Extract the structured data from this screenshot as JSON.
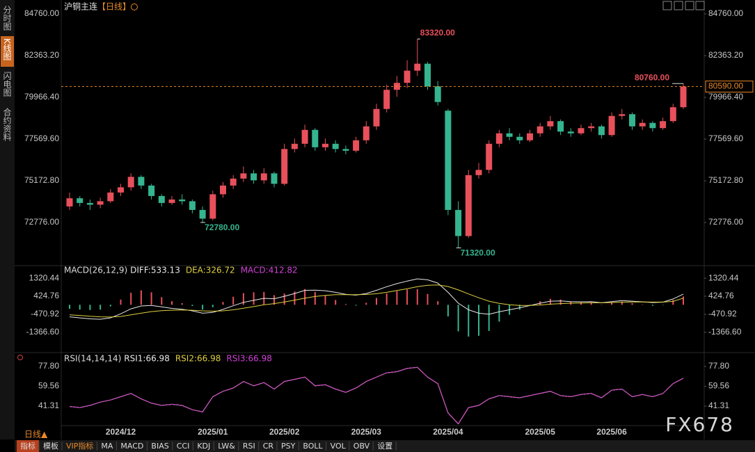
{
  "header": {
    "symbol": "沪铜主连",
    "period": "【日线】"
  },
  "sidebar": [
    "分时图",
    "K线图",
    "闪电图",
    "合约资料"
  ],
  "bottom_period": "日线▲",
  "toolbar": [
    "指标",
    "模板",
    "VIP指标",
    "MA",
    "MACD",
    "BIAS",
    "CCI",
    "KDJ",
    "LW&",
    "RSI",
    "CR",
    "PSY",
    "BOLL",
    "VOL",
    "OBV",
    "设置"
  ],
  "watermark": "FX678",
  "chart_data": [
    {
      "type": "candlestick",
      "categories": [
        null,
        null,
        null,
        null,
        null,
        "2024/12",
        null,
        null,
        null,
        null,
        null,
        null,
        null,
        null,
        "2025/01",
        null,
        null,
        null,
        null,
        null,
        null,
        "2025/02",
        null,
        null,
        null,
        null,
        null,
        null,
        null,
        "2025/03",
        null,
        null,
        null,
        null,
        null,
        null,
        null,
        "2025/04",
        null,
        null,
        null,
        null,
        null,
        null,
        null,
        null,
        "2025/05",
        null,
        null,
        null,
        null,
        null,
        null,
        "2025/06",
        null,
        null,
        null,
        null,
        null,
        null,
        null
      ],
      "open": [
        73700,
        74170,
        73900,
        73800,
        74000,
        74500,
        74800,
        75400,
        74900,
        74300,
        73900,
        74100,
        74000,
        73500,
        73000,
        74400,
        74900,
        75300,
        75600,
        75200,
        75600,
        75000,
        77000,
        77300,
        78100,
        77100,
        77300,
        77000,
        76900,
        77500,
        78300,
        79300,
        80400,
        80800,
        81500,
        81900,
        80600,
        79200,
        73500,
        72000,
        75500,
        75800,
        77300,
        77900,
        77700,
        77500,
        77900,
        78300,
        78600,
        78000,
        77900,
        78200,
        78300,
        77800,
        78900,
        79000,
        78300,
        78500,
        78200,
        78600,
        79400
      ],
      "high": [
        74500,
        74300,
        74100,
        74200,
        74700,
        75000,
        75600,
        75500,
        75000,
        74400,
        74300,
        74400,
        74100,
        73700,
        74600,
        75100,
        75500,
        76000,
        75800,
        75900,
        75700,
        77300,
        77600,
        78400,
        78200,
        77600,
        77500,
        77200,
        77700,
        78600,
        79600,
        80700,
        81200,
        82100,
        83320,
        82000,
        80900,
        79300,
        74000,
        75800,
        76200,
        77500,
        78100,
        78200,
        77900,
        78100,
        78500,
        78900,
        78700,
        78200,
        78400,
        78500,
        78400,
        79100,
        79300,
        79100,
        78700,
        78600,
        78800,
        79600,
        80760
      ],
      "low": [
        73500,
        73700,
        73500,
        73600,
        73900,
        74300,
        74600,
        74700,
        74100,
        73700,
        73800,
        73800,
        73300,
        72780,
        72900,
        74200,
        74700,
        75100,
        75000,
        75000,
        74800,
        74900,
        76800,
        77100,
        76900,
        76900,
        76800,
        76700,
        76800,
        77300,
        78100,
        79100,
        80000,
        80500,
        81200,
        80400,
        79500,
        73200,
        71320,
        71900,
        75300,
        75600,
        77100,
        77500,
        77300,
        77400,
        77700,
        78100,
        77800,
        77700,
        77800,
        78000,
        77600,
        77700,
        78700,
        78100,
        78100,
        78000,
        78100,
        78500,
        79300
      ],
      "close": [
        74170,
        73900,
        73800,
        74000,
        74500,
        74800,
        75400,
        74900,
        74300,
        73900,
        74100,
        74000,
        73500,
        73000,
        74400,
        74900,
        75300,
        75600,
        75200,
        75600,
        75000,
        77000,
        77300,
        78100,
        77100,
        77300,
        77000,
        76900,
        77500,
        78300,
        79300,
        80400,
        80800,
        81500,
        81900,
        80600,
        79700,
        73500,
        72000,
        75500,
        75800,
        77300,
        77900,
        77700,
        77500,
        77900,
        78300,
        78600,
        78000,
        77900,
        78200,
        78300,
        77800,
        78900,
        79000,
        78300,
        78500,
        78200,
        78600,
        79400,
        80590
      ],
      "up_color": "#e8505b",
      "down_color": "#35b58f",
      "ylim": [
        70380,
        85360
      ],
      "yticks": [
        {
          "value": 84760,
          "label": "84760.00"
        },
        {
          "value": 82363.2,
          "label": "82363.20"
        },
        {
          "value": 79966.4,
          "label": "79966.40"
        },
        {
          "value": 77569.6,
          "label": "77569.60"
        },
        {
          "value": 75172.8,
          "label": "75172.80"
        },
        {
          "value": 72776,
          "label": "72776.00"
        }
      ],
      "high_labels": [
        {
          "value": 83320,
          "label": "83320.00"
        },
        {
          "value": 80760,
          "label": "80760.00"
        }
      ],
      "low_labels": [
        {
          "value": 72780,
          "label": "72780.00"
        },
        {
          "value": 71320,
          "label": "71320.00"
        }
      ],
      "last_price": {
        "value": 80590,
        "label": "80590.00"
      }
    },
    {
      "type": "macd",
      "title": "MACD(26,12,9)",
      "series": [
        {
          "name": "DIFF:533.13",
          "color": "#e8e8e8",
          "values": [
            -600,
            -650,
            -700,
            -720,
            -650,
            -450,
            -200,
            -60,
            -30,
            -100,
            -180,
            -220,
            -300,
            -420,
            -380,
            -230,
            -50,
            120,
            220,
            320,
            300,
            420,
            560,
            720,
            730,
            700,
            620,
            520,
            480,
            560,
            720,
            900,
            1050,
            1180,
            1290,
            1240,
            1080,
            620,
            80,
            -250,
            -420,
            -470,
            -350,
            -250,
            -150,
            -40,
            80,
            180,
            190,
            160,
            150,
            160,
            100,
            160,
            210,
            180,
            150,
            110,
            130,
            290,
            533.13
          ]
        },
        {
          "name": "DEA:326.72",
          "color": "#e0d040",
          "values": [
            -500,
            -530,
            -570,
            -600,
            -610,
            -580,
            -500,
            -420,
            -340,
            -290,
            -270,
            -260,
            -270,
            -300,
            -320,
            -300,
            -250,
            -170,
            -90,
            0,
            60,
            140,
            230,
            330,
            410,
            470,
            500,
            500,
            500,
            510,
            550,
            620,
            710,
            800,
            900,
            970,
            990,
            910,
            740,
            540,
            350,
            180,
            70,
            0,
            -30,
            -30,
            -10,
            30,
            60,
            80,
            90,
            100,
            100,
            110,
            130,
            140,
            140,
            135,
            135,
            170,
            326.72
          ]
        },
        {
          "name": "MACD:412.82",
          "color": "#d040d8",
          "values": [
            -200,
            -240,
            -260,
            -240,
            -80,
            260,
            600,
            720,
            620,
            380,
            180,
            80,
            -60,
            -240,
            -120,
            140,
            400,
            580,
            620,
            640,
            480,
            560,
            660,
            780,
            640,
            460,
            240,
            40,
            -40,
            100,
            340,
            560,
            680,
            760,
            780,
            540,
            180,
            -580,
            -1320,
            -1580,
            -1540,
            -1300,
            -840,
            -500,
            -240,
            -20,
            180,
            300,
            260,
            160,
            120,
            120,
            0,
            100,
            160,
            80,
            20,
            -50,
            -10,
            240,
            412.82
          ]
        }
      ],
      "up_color": "#e8505b",
      "down_color": "#35b58f",
      "ylim": [
        -2307,
        1843
      ],
      "yticks": [
        1320.44,
        424.76,
        -470.92,
        {
          "value": -1366.6,
          "label": "-1366.60"
        }
      ]
    },
    {
      "type": "rsi",
      "title": "RSI(14,14,14)",
      "series": [
        {
          "name": "RSI1:66.98",
          "color": "#e8e8e8",
          "values": [
            41,
            40,
            42,
            45,
            47,
            50,
            53,
            48,
            44,
            42,
            43,
            42,
            38,
            36,
            50,
            55,
            58,
            64,
            60,
            63,
            57,
            64,
            66,
            68,
            60,
            61,
            57,
            54,
            58,
            64,
            68,
            72,
            73,
            76,
            77,
            68,
            62,
            35,
            25,
            40,
            42,
            48,
            51,
            50,
            49,
            51,
            53,
            55,
            51,
            50,
            52,
            53,
            49,
            56,
            57,
            50,
            52,
            50,
            53,
            62,
            66.98
          ]
        },
        {
          "name": "RSI2:66.98",
          "color": "#e0d040",
          "values": [
            41,
            40,
            42,
            45,
            47,
            50,
            53,
            48,
            44,
            42,
            43,
            42,
            38,
            36,
            50,
            55,
            58,
            64,
            60,
            63,
            57,
            64,
            66,
            68,
            60,
            61,
            57,
            54,
            58,
            64,
            68,
            72,
            73,
            76,
            77,
            68,
            62,
            35,
            25,
            40,
            42,
            48,
            51,
            50,
            49,
            51,
            53,
            55,
            51,
            50,
            52,
            53,
            49,
            56,
            57,
            50,
            52,
            50,
            53,
            62,
            66.98
          ]
        },
        {
          "name": "RSI3:66.98",
          "color": "#d040d8",
          "values": [
            41,
            40,
            42,
            45,
            47,
            50,
            53,
            48,
            44,
            42,
            43,
            42,
            38,
            36,
            50,
            55,
            58,
            64,
            60,
            63,
            57,
            64,
            66,
            68,
            60,
            61,
            57,
            54,
            58,
            64,
            68,
            72,
            73,
            76,
            77,
            68,
            62,
            35,
            25,
            40,
            42,
            48,
            51,
            50,
            49,
            51,
            53,
            55,
            51,
            50,
            52,
            53,
            49,
            56,
            57,
            50,
            52,
            50,
            53,
            62,
            66.98
          ]
        }
      ],
      "ylim": [
        21.5,
        88.7
      ],
      "yticks": [
        {
          "value": 77.8,
          "label": "77.80"
        },
        59.56,
        41.31
      ]
    }
  ]
}
